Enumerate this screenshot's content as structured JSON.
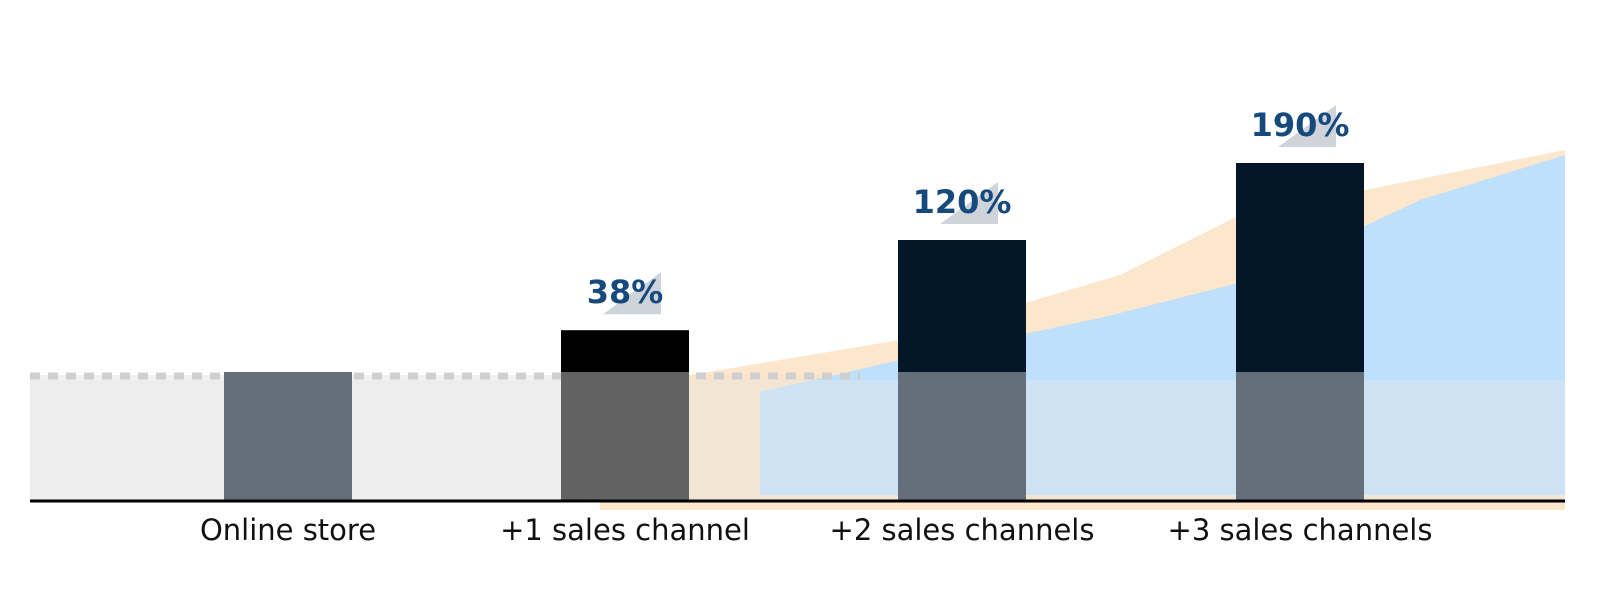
{
  "chart_data": {
    "type": "bar",
    "categories": [
      "Online store",
      "+1 sales channel",
      "+2 sales channels",
      "+3 sales channels"
    ],
    "values": [
      0,
      38,
      120,
      190
    ],
    "value_labels": [
      null,
      "38%",
      "120%",
      "190%"
    ],
    "colors": [
      "#656f7c",
      "#000000",
      "#041729",
      "#041729"
    ]
  }
}
